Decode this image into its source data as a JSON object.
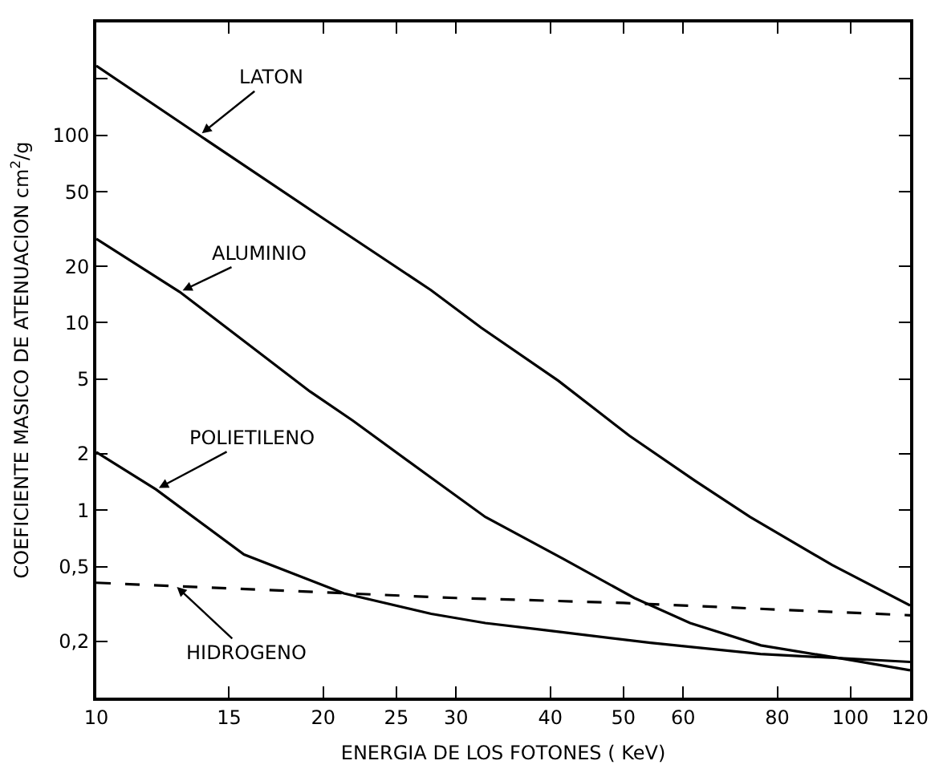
{
  "chart_data": {
    "type": "line",
    "xlabel": "ENERGIA DE LOS FOTONES ( KeV)",
    "ylabel": "COEFICIENTE MASICO DE ATENUACION cm$^{2}$/g",
    "log": "xy",
    "grid": false,
    "marker": "none",
    "xlim": [
      10,
      120
    ],
    "ylim": [
      0.1,
      400
    ],
    "xticks": [
      10,
      15,
      20,
      25,
      30,
      40,
      50,
      60,
      80,
      100,
      120
    ],
    "yticks": [
      {
        "value": 0.2,
        "label": "0,2"
      },
      {
        "value": 0.5,
        "label": "0,5"
      },
      1,
      2,
      5,
      10,
      20,
      50,
      100,
      {
        "value": 200,
        "label": null
      }
    ],
    "series": [
      {
        "color": "#000000",
        "line_style": "solid",
        "x": [
          10,
          13.7,
          20,
          27.8,
          32.4,
          41,
          50.9,
          62.3,
          73.6,
          94.6,
          120
        ],
        "values": [
          235,
          100,
          36,
          14.9,
          9.4,
          4.9,
          2.5,
          1.43,
          0.92,
          0.51,
          0.31
        ]
      },
      {
        "color": "#000000",
        "line_style": "solid",
        "x": [
          10,
          12.9,
          19.2,
          21.9,
          27.8,
          32.8,
          41.6,
          51.7,
          61.3,
          76.1,
          97.9,
          120
        ],
        "values": [
          28,
          14.6,
          4.3,
          3,
          1.49,
          0.92,
          0.55,
          0.34,
          0.25,
          0.19,
          0.161,
          0.14
        ]
      },
      {
        "color": "#000000",
        "line_style": "solid",
        "x": [
          10,
          12,
          15.7,
          21.3,
          27.8,
          32.8,
          39,
          54.3,
          76,
          120
        ],
        "values": [
          2.04,
          1.29,
          0.58,
          0.36,
          0.28,
          0.25,
          0.23,
          0.196,
          0.171,
          0.155
        ]
      },
      {
        "color": "#000000",
        "line_style": "dashed",
        "x": [
          10,
          30,
          50,
          120
        ],
        "values": [
          0.41,
          0.34,
          0.32,
          0.275
        ]
      }
    ],
    "annotations": [
      {
        "text": "LATON",
        "x": 13.7,
        "y": 100
      },
      {
        "text": "ALUMINIO",
        "x": 12.9,
        "y": 14.6
      },
      {
        "text": "POLIETILENO",
        "x": 12,
        "y": 1.29
      },
      {
        "text": "HIDROGENO",
        "x": 12.7,
        "y": 0.4
      }
    ]
  }
}
